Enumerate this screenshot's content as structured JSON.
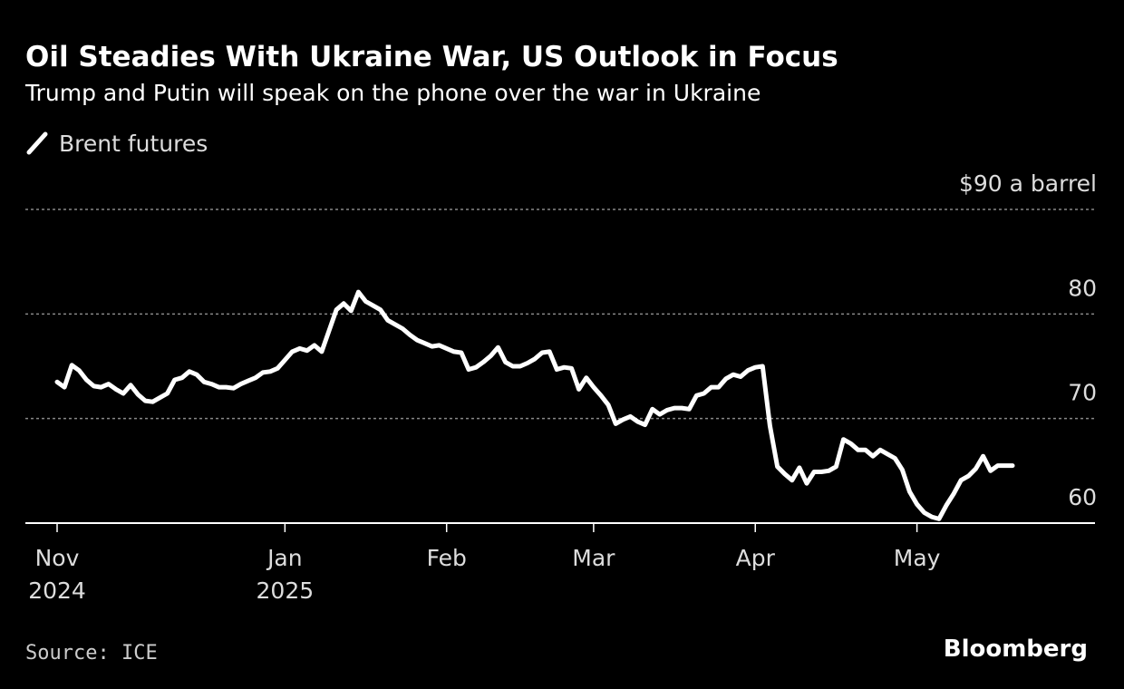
{
  "chart_data": {
    "type": "line",
    "title": "Oil Steadies With Ukraine War, US Outlook in Focus",
    "subtitle": "Trump and Putin will speak on the phone over the war in Ukraine",
    "source": "Source: ICE",
    "brand": "Bloomberg",
    "categories": [
      "Nov 2024",
      null,
      null,
      null,
      null,
      null,
      null,
      null,
      null,
      null,
      null,
      null,
      null,
      null,
      null,
      null,
      null,
      null,
      null,
      null,
      null,
      null,
      null,
      null,
      null,
      null,
      null,
      null,
      null,
      null,
      null,
      "Jan 2025",
      null,
      null,
      null,
      null,
      null,
      null,
      null,
      null,
      null,
      null,
      null,
      null,
      null,
      null,
      null,
      null,
      null,
      null,
      null,
      null,
      null,
      "Feb",
      null,
      null,
      null,
      null,
      null,
      null,
      null,
      null,
      null,
      null,
      null,
      null,
      null,
      null,
      null,
      null,
      null,
      null,
      null,
      "Mar",
      null,
      null,
      null,
      null,
      null,
      null,
      null,
      null,
      null,
      null,
      null,
      null,
      null,
      null,
      null,
      null,
      null,
      null,
      null,
      null,
      null,
      "Apr",
      null,
      null,
      null,
      null,
      null,
      null,
      null,
      null,
      null,
      null,
      null,
      null,
      null,
      null,
      null,
      null,
      null,
      null,
      null,
      null,
      null,
      "May",
      null,
      null,
      null,
      null,
      null,
      null,
      null,
      null,
      null,
      null,
      null,
      null,
      null
    ],
    "series": [
      {
        "name": "Brent futures",
        "color": "#ffffff",
        "values": [
          73.5,
          73.0,
          75.1,
          74.6,
          73.7,
          73.1,
          73.0,
          73.3,
          72.8,
          72.4,
          73.2,
          72.3,
          71.7,
          71.6,
          72.0,
          72.4,
          73.7,
          73.9,
          74.5,
          74.2,
          73.5,
          73.3,
          73.0,
          73.0,
          72.9,
          73.3,
          73.6,
          73.9,
          74.4,
          74.5,
          74.8,
          75.6,
          76.4,
          76.7,
          76.5,
          77.0,
          76.4,
          78.4,
          80.4,
          81.0,
          80.3,
          82.1,
          81.2,
          80.8,
          80.4,
          79.4,
          79.0,
          78.6,
          78.0,
          77.5,
          77.2,
          76.9,
          77.0,
          76.7,
          76.4,
          76.3,
          74.7,
          74.9,
          75.4,
          76.0,
          76.8,
          75.4,
          75.0,
          75.0,
          75.3,
          75.7,
          76.3,
          76.4,
          74.7,
          74.9,
          74.8,
          72.8,
          73.9,
          73.0,
          72.2,
          71.3,
          69.5,
          69.9,
          70.2,
          69.7,
          69.4,
          70.9,
          70.4,
          70.8,
          71.0,
          71.0,
          70.9,
          72.2,
          72.4,
          73.0,
          73.0,
          73.8,
          74.2,
          74.0,
          74.6,
          74.9,
          75.0,
          69.3,
          65.4,
          64.7,
          64.1,
          65.3,
          63.8,
          64.9,
          64.9,
          65.0,
          65.4,
          68.0,
          67.6,
          67.0,
          67.0,
          66.4,
          67.0,
          66.6,
          66.2,
          65.1,
          63.0,
          61.8,
          61.0,
          60.6,
          60.4,
          61.7,
          62.8,
          64.1,
          64.5,
          65.2,
          66.4,
          65.0,
          65.5,
          65.5,
          65.5
        ]
      }
    ],
    "ylim": [
      60,
      90
    ],
    "yticks": [
      60,
      70,
      80,
      {
        "value": 90,
        "label": "$90 a barrel"
      }
    ],
    "grid": true
  }
}
